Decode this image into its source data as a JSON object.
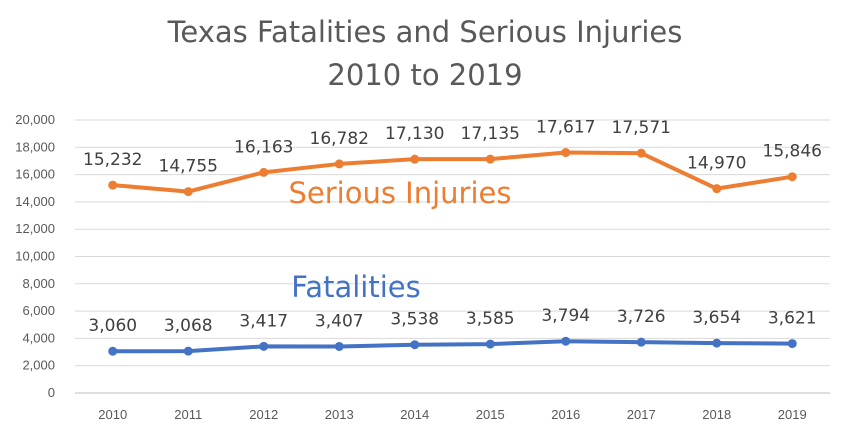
{
  "chart_data": {
    "type": "line",
    "title_lines": [
      "Texas Fatalities and Serious Injuries",
      "2010 to 2019"
    ],
    "categories": [
      "2010",
      "2011",
      "2012",
      "2013",
      "2014",
      "2015",
      "2016",
      "2017",
      "2018",
      "2019"
    ],
    "series": [
      {
        "name": "Serious Injuries",
        "color": "#ED7D31",
        "values": [
          15232,
          14755,
          16163,
          16782,
          17130,
          17135,
          17617,
          17571,
          14970,
          15846
        ],
        "labels": [
          "15,232",
          "14,755",
          "16,163",
          "16,782",
          "17,130",
          "17,135",
          "17,617",
          "17,571",
          "14,970",
          "15,846"
        ]
      },
      {
        "name": "Fatalities",
        "color": "#4472C4",
        "values": [
          3060,
          3068,
          3417,
          3407,
          3538,
          3585,
          3794,
          3726,
          3654,
          3621
        ],
        "labels": [
          "3,060",
          "3,068",
          "3,417",
          "3,407",
          "3,538",
          "3,585",
          "3,794",
          "3,726",
          "3,654",
          "3,621"
        ]
      }
    ],
    "ylim": [
      0,
      20000
    ],
    "yticks": [
      "0",
      "2,000",
      "4,000",
      "6,000",
      "8,000",
      "10,000",
      "12,000",
      "14,000",
      "16,000",
      "18,000",
      "20,000"
    ],
    "grid": true,
    "legend": "inline labels"
  }
}
